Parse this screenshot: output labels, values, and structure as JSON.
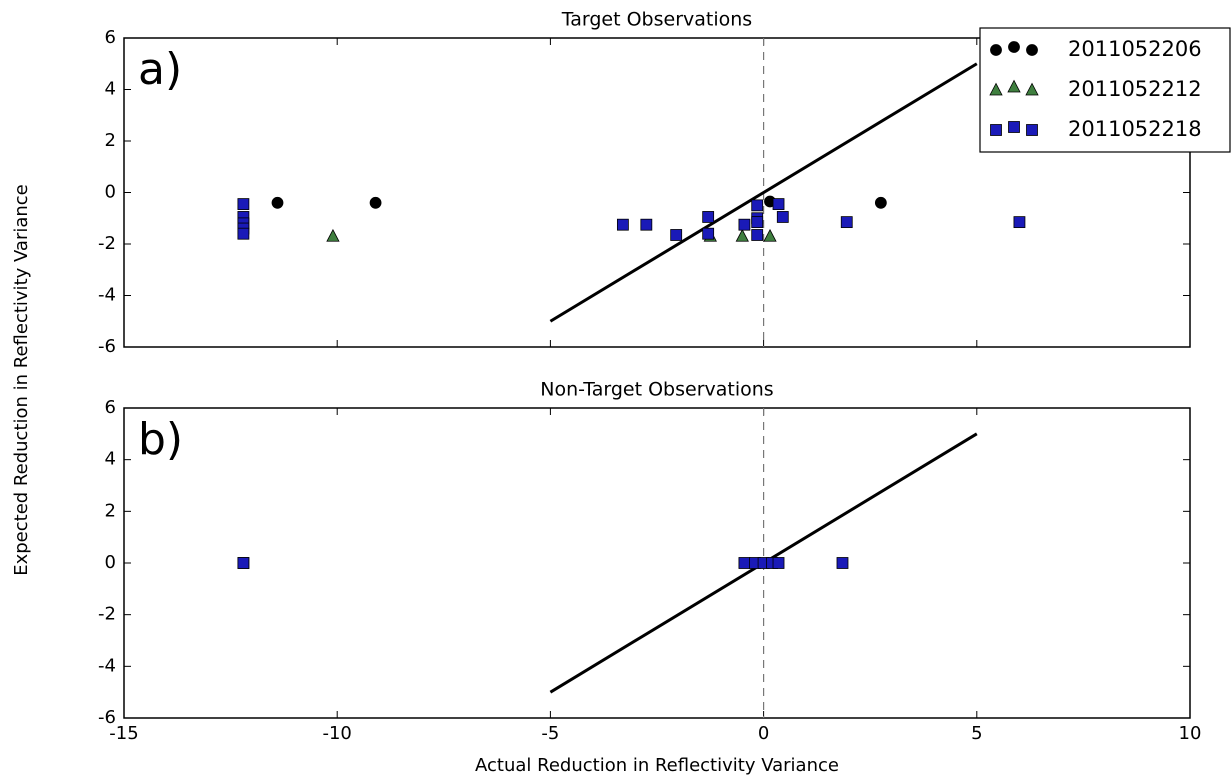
{
  "xlabel": "Actual Reduction in Reflectivity Variance",
  "ylabel": "Expected Reduction in Reflectivity Variance",
  "chart_data": [
    {
      "type": "scatter",
      "title": "Target Observations",
      "annotation": "a)",
      "xlim": [
        -15,
        10
      ],
      "xticks": [
        -15,
        -10,
        -5,
        0,
        5,
        10
      ],
      "ylim": [
        -6,
        6
      ],
      "yticks": [
        -6,
        -4,
        -2,
        0,
        2,
        4,
        6
      ],
      "legend": "upper right",
      "vline": 0,
      "reference_line": {
        "x": [
          -5,
          5
        ],
        "values": [
          -5,
          5
        ],
        "color": "#000000"
      },
      "series": [
        {
          "name": "2011052206",
          "color": "#000000",
          "marker": "circle",
          "x": [
            -11.4,
            -9.1,
            0.15,
            2.75
          ],
          "values": [
            -0.4,
            -0.4,
            -0.35,
            -0.4
          ]
        },
        {
          "name": "2011052212",
          "color": "#3f7f3f",
          "marker": "triangle",
          "x": [
            -10.1,
            -1.25,
            -0.5,
            0.15
          ],
          "values": [
            -1.7,
            -1.7,
            -1.7,
            -1.7
          ]
        },
        {
          "name": "2011052218",
          "color": "#1a1ab8",
          "marker": "square",
          "x": [
            -12.2,
            -12.2,
            -12.2,
            -12.2,
            -12.2,
            -3.3,
            -2.75,
            -2.05,
            -1.3,
            -1.3,
            -0.45,
            -0.15,
            -0.15,
            -0.15,
            -0.15,
            0.35,
            0.45,
            1.95,
            6.0
          ],
          "values": [
            -0.45,
            -0.95,
            -1.2,
            -1.4,
            -1.6,
            -1.25,
            -1.25,
            -1.65,
            -1.6,
            -0.95,
            -1.25,
            -0.5,
            -1.0,
            -1.15,
            -1.65,
            -0.45,
            -0.95,
            -1.15,
            -1.15
          ]
        }
      ]
    },
    {
      "type": "scatter",
      "title": "Non-Target Observations",
      "annotation": "b)",
      "xlim": [
        -15,
        10
      ],
      "xticks": [
        -15,
        -10,
        -5,
        0,
        5,
        10
      ],
      "ylim": [
        -6,
        6
      ],
      "yticks": [
        -6,
        -4,
        -2,
        0,
        2,
        4,
        6
      ],
      "vline": 0,
      "reference_line": {
        "x": [
          -5,
          5
        ],
        "values": [
          -5,
          5
        ],
        "color": "#000000"
      },
      "series": [
        {
          "color": "#1a1ab8",
          "marker": "square",
          "x": [
            -12.2,
            -12.2,
            -0.45,
            -0.2,
            0,
            0.2,
            0.35,
            1.85
          ],
          "values": [
            0,
            0,
            0,
            0,
            0,
            0,
            0,
            0
          ]
        }
      ]
    }
  ]
}
